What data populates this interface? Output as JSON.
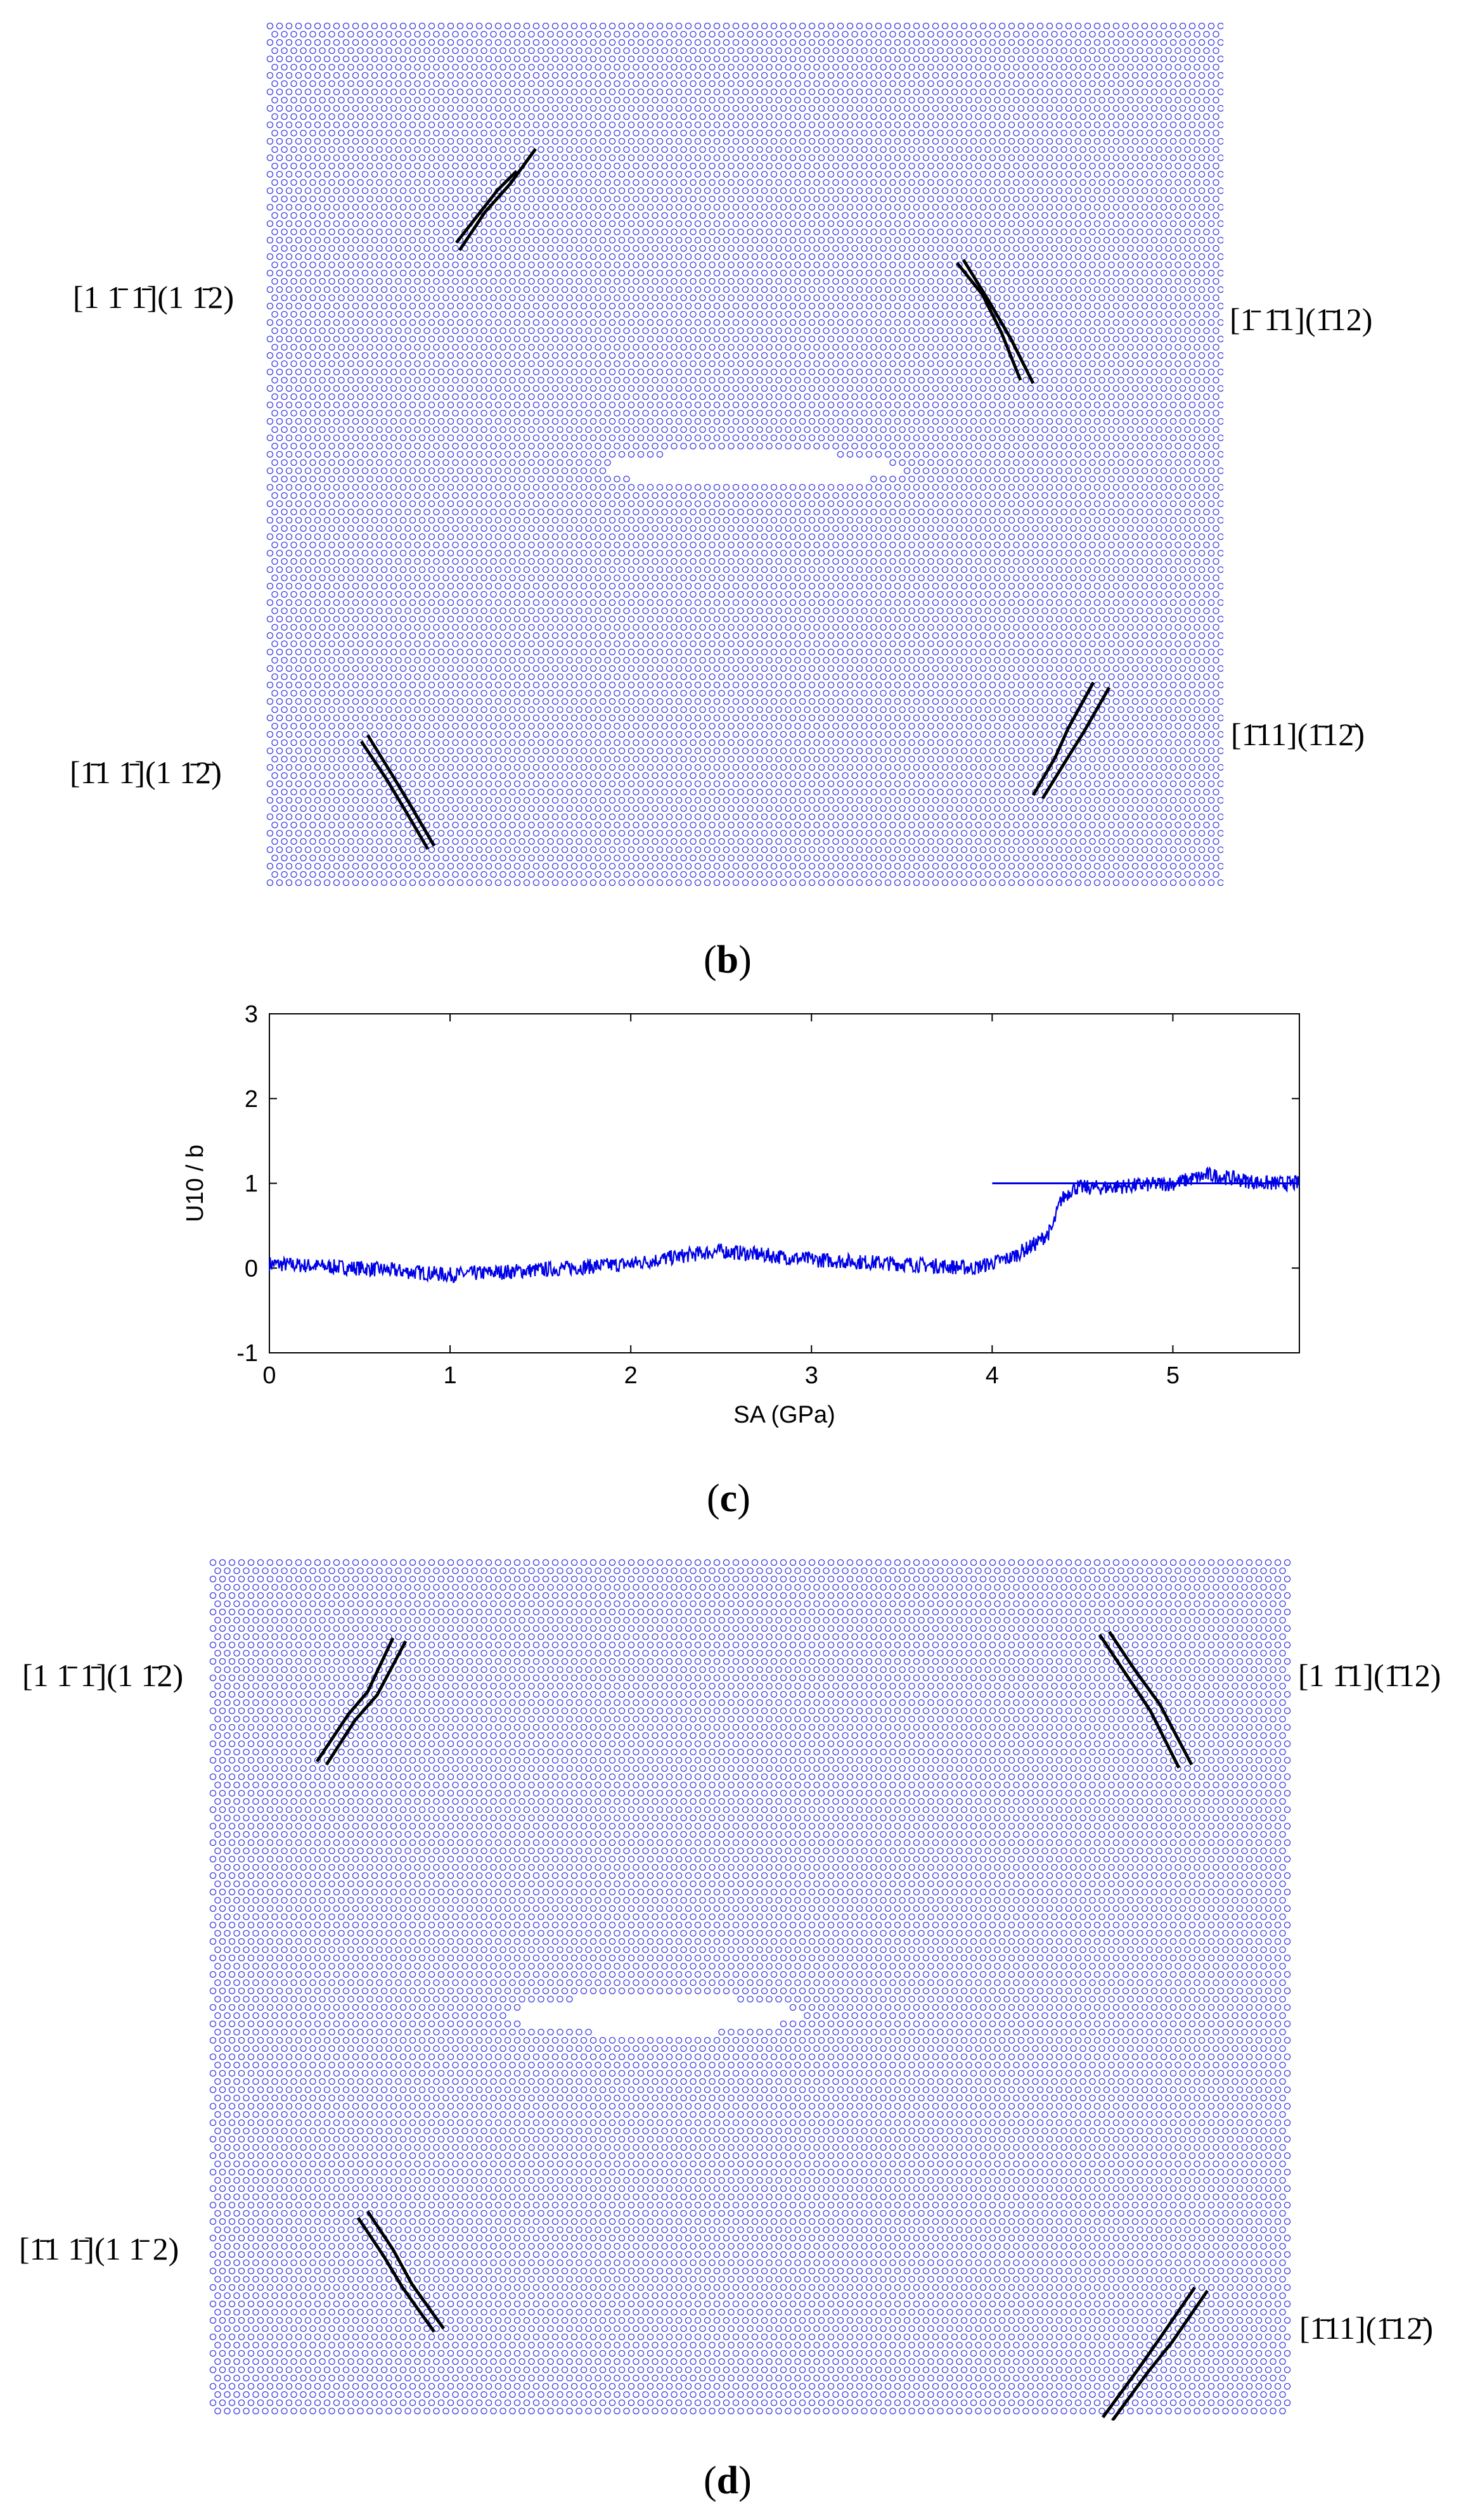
{
  "panel_b": {
    "caption_open": "(",
    "caption_letter": "b",
    "caption_close": ")",
    "labels": {
      "top_left": "[1 1̄ 1̄](1 1̄2)",
      "top_right": "[1̄ 1̄1](1̄12)",
      "bottom_left": "[1̄1 1̄](1 1̄2̄)",
      "bottom_right": "[1̄11](1̄12̄)"
    }
  },
  "panel_c": {
    "caption_open": "(",
    "caption_letter": "c",
    "caption_close": ")"
  },
  "panel_d": {
    "caption_open": "(",
    "caption_letter": "d",
    "caption_close": ")",
    "labels": {
      "top_left": "[1 1̄ 1̄](1 1̄2)",
      "top_right": "[1 1̄1](1̄12)",
      "bottom_left": "[1̄1 1̄](1 1̄ 2)",
      "bottom_right": "[1̄11](1̄12̄)"
    }
  },
  "colors": {
    "atoms": "#3a3ae0",
    "curve": "#0000e6",
    "dislocation": "#000000"
  },
  "chart_data": {
    "type": "line",
    "title": "",
    "xlabel": "SA (GPa)",
    "ylabel": "U10 / b",
    "xlim": [
      0,
      5.7
    ],
    "ylim": [
      -1,
      3
    ],
    "xticks": [
      "0",
      "1",
      "2",
      "3",
      "4",
      "5"
    ],
    "yticks": [
      "-1",
      "0",
      "1",
      "2",
      "3"
    ],
    "grid": false,
    "series": [
      {
        "x": [
          0,
          0.5,
          1.0,
          1.5,
          2.0,
          2.4,
          2.5,
          3.0,
          3.5,
          3.9,
          4.1,
          4.25,
          4.33,
          4.38,
          4.45,
          4.6,
          5.0,
          5.2,
          5.5,
          5.7
        ],
        "y": [
          0.05,
          0.0,
          -0.08,
          -0.02,
          0.05,
          0.18,
          0.2,
          0.1,
          0.05,
          0.0,
          0.12,
          0.3,
          0.45,
          0.8,
          0.95,
          0.95,
          1.0,
          1.1,
          1.0,
          1.0
        ]
      },
      {
        "x": [
          4.0,
          5.7
        ],
        "y": [
          1.0,
          1.0
        ]
      }
    ]
  }
}
